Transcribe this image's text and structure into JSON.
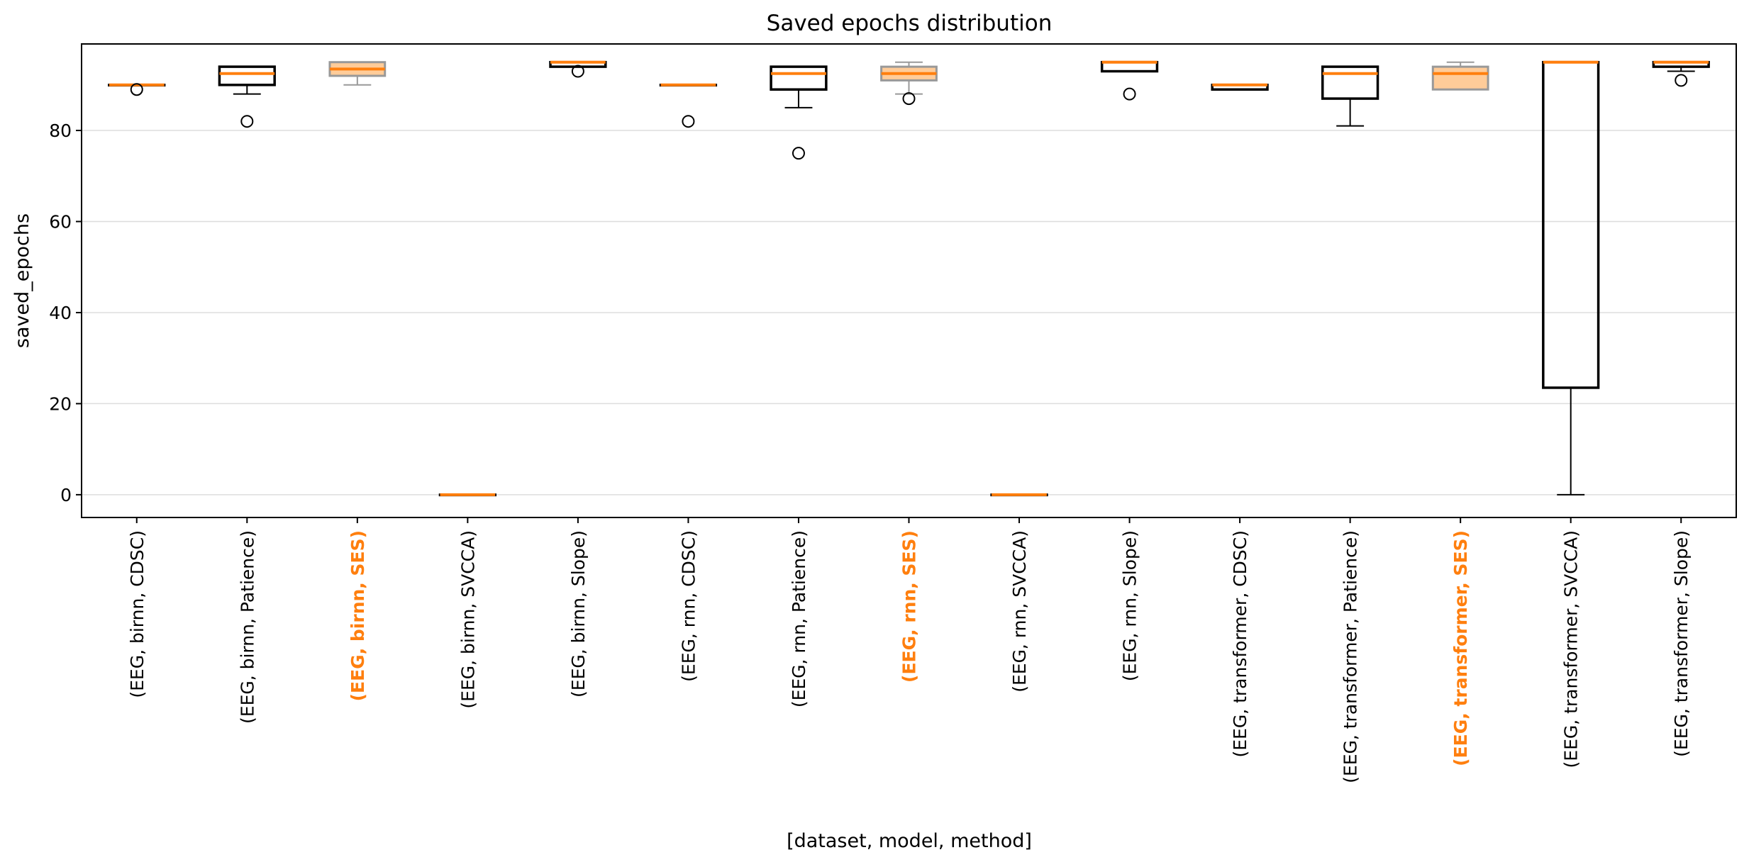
{
  "chart_data": {
    "type": "box",
    "title": "Saved epochs distribution",
    "xlabel": "[dataset, model, method]",
    "ylabel": "saved_epochs",
    "ylim": [
      -5,
      99
    ],
    "yticks": [
      0,
      20,
      40,
      60,
      80
    ],
    "grid": "y",
    "colors": {
      "median": "#ff7f0e",
      "box": "#000000",
      "highlight_box": "#999999",
      "highlight_fill": "#ffcc99",
      "highlight_text": "#ff7f0e",
      "grid": "#dddddd"
    },
    "boxes": [
      {
        "label": "(EEG, birnn, CDSC)",
        "highlight": false,
        "q1": 90,
        "median": 90,
        "q3": 90,
        "whislo": 90,
        "whishi": 90,
        "fliers": [
          89
        ]
      },
      {
        "label": "(EEG, birnn, Patience)",
        "highlight": false,
        "q1": 90,
        "median": 92.5,
        "q3": 94,
        "whislo": 88,
        "whishi": 94,
        "fliers": [
          82
        ]
      },
      {
        "label": "(EEG, birnn, SES)",
        "highlight": true,
        "q1": 92,
        "median": 93.5,
        "q3": 95,
        "whislo": 90,
        "whishi": 95,
        "fliers": []
      },
      {
        "label": "(EEG, birnn, SVCCA)",
        "highlight": false,
        "q1": 0,
        "median": 0,
        "q3": 0,
        "whislo": 0,
        "whishi": 0,
        "fliers": []
      },
      {
        "label": "(EEG, birnn, Slope)",
        "highlight": false,
        "q1": 94,
        "median": 95,
        "q3": 95,
        "whislo": 94,
        "whishi": 95,
        "fliers": [
          93
        ]
      },
      {
        "label": "(EEG, rnn, CDSC)",
        "highlight": false,
        "q1": 90,
        "median": 90,
        "q3": 90,
        "whislo": 90,
        "whishi": 90,
        "fliers": [
          82
        ]
      },
      {
        "label": "(EEG, rnn, Patience)",
        "highlight": false,
        "q1": 89,
        "median": 92.5,
        "q3": 94,
        "whislo": 85,
        "whishi": 94,
        "fliers": [
          75
        ]
      },
      {
        "label": "(EEG, rnn, SES)",
        "highlight": true,
        "q1": 91,
        "median": 92.5,
        "q3": 94,
        "whislo": 88,
        "whishi": 95,
        "fliers": [
          87
        ]
      },
      {
        "label": "(EEG, rnn, SVCCA)",
        "highlight": false,
        "q1": 0,
        "median": 0,
        "q3": 0,
        "whislo": 0,
        "whishi": 0,
        "fliers": []
      },
      {
        "label": "(EEG, rnn, Slope)",
        "highlight": false,
        "q1": 93,
        "median": 95,
        "q3": 95,
        "whislo": 93,
        "whishi": 95,
        "fliers": [
          88
        ]
      },
      {
        "label": "(EEG, transformer, CDSC)",
        "highlight": false,
        "q1": 89,
        "median": 90,
        "q3": 90,
        "whislo": 89,
        "whishi": 90,
        "fliers": []
      },
      {
        "label": "(EEG, transformer, Patience)",
        "highlight": false,
        "q1": 87,
        "median": 92.5,
        "q3": 94,
        "whislo": 81,
        "whishi": 94,
        "fliers": []
      },
      {
        "label": "(EEG, transformer, SES)",
        "highlight": true,
        "q1": 89,
        "median": 92.5,
        "q3": 94,
        "whislo": 89,
        "whishi": 95,
        "fliers": []
      },
      {
        "label": "(EEG, transformer, SVCCA)",
        "highlight": false,
        "q1": 23.5,
        "median": 95,
        "q3": 95,
        "whislo": 0,
        "whishi": 95,
        "fliers": []
      },
      {
        "label": "(EEG, transformer, Slope)",
        "highlight": false,
        "q1": 94,
        "median": 95,
        "q3": 95,
        "whislo": 93,
        "whishi": 95,
        "fliers": [
          91
        ]
      }
    ]
  }
}
